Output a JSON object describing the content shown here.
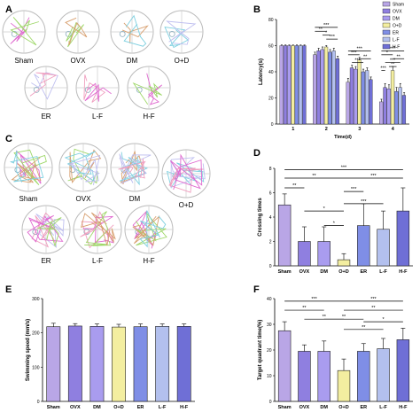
{
  "panels": {
    "A": {
      "letter": "A",
      "labels": [
        "Sham",
        "OVX",
        "DM",
        "O+D",
        "ER",
        "L-F",
        "H-F"
      ]
    },
    "C": {
      "letter": "C",
      "labels": [
        "Sham",
        "OVX",
        "DM",
        "O+D",
        "ER",
        "L-F",
        "H-F"
      ]
    },
    "B": {
      "letter": "B"
    },
    "D": {
      "letter": "D"
    },
    "E": {
      "letter": "E"
    },
    "F": {
      "letter": "F"
    }
  },
  "colors": {
    "Sham": "#b9a6e6",
    "OVX": "#8f7fe0",
    "DM": "#a99cef",
    "O+D": "#f3eea0",
    "ER": "#7f8ee6",
    "L-F": "#b3c0ee",
    "H-F": "#6f6fd6"
  },
  "chart_data": [
    {
      "panel": "B",
      "type": "bar",
      "xlabel": "Time(d)",
      "ylabel": "Latency(s)",
      "ylim": [
        0,
        80
      ],
      "yticks": [
        0,
        20,
        40,
        60,
        80
      ],
      "categories": [
        "1",
        "2",
        "3",
        "4"
      ],
      "legend": "top-right",
      "significance_labels": [
        "***",
        "**",
        "*",
        "***",
        "***",
        "***",
        "**",
        "***",
        "***",
        "*",
        "**",
        "***",
        "**",
        "***"
      ],
      "series": [
        {
          "name": "Sham",
          "values": [
            60,
            53,
            32,
            17
          ],
          "errors": [
            0.5,
            2,
            3,
            2
          ]
        },
        {
          "name": "OVX",
          "values": [
            60,
            56,
            43,
            28
          ],
          "errors": [
            0.5,
            2,
            2,
            3
          ]
        },
        {
          "name": "DM",
          "values": [
            60,
            57,
            42,
            27
          ],
          "errors": [
            0.5,
            2,
            2,
            3
          ]
        },
        {
          "name": "O+D",
          "values": [
            60,
            59,
            49,
            41
          ],
          "errors": [
            0.5,
            1,
            2,
            3
          ]
        },
        {
          "name": "ER",
          "values": [
            60,
            55,
            40,
            25
          ],
          "errors": [
            0.5,
            2,
            2,
            3
          ]
        },
        {
          "name": "L-F",
          "values": [
            60,
            56,
            41,
            28
          ],
          "errors": [
            0.5,
            2,
            2,
            3
          ]
        },
        {
          "name": "H-F",
          "values": [
            60,
            50,
            34,
            22
          ],
          "errors": [
            0.5,
            2,
            2,
            2
          ]
        }
      ]
    },
    {
      "panel": "D",
      "type": "bar",
      "ylabel": "Crossing times",
      "ylim": [
        0,
        8
      ],
      "yticks": [
        0,
        2,
        4,
        6,
        8
      ],
      "categories": [
        "Sham",
        "OVX",
        "DM",
        "O+D",
        "ER",
        "L-F",
        "H-F"
      ],
      "values": [
        5.0,
        2.0,
        2.0,
        0.5,
        3.3,
        3.0,
        4.5
      ],
      "errors": [
        0.9,
        1.2,
        1.2,
        0.5,
        1.8,
        1.5,
        1.9
      ],
      "significance_labels": [
        "***",
        "**",
        "**",
        "***",
        "*",
        "*",
        "***",
        "***"
      ]
    },
    {
      "panel": "E",
      "type": "bar",
      "ylabel": "Swimming speed (mm/s)",
      "ylim": [
        0,
        300
      ],
      "yticks": [
        0,
        100,
        200,
        300
      ],
      "categories": [
        "Sham",
        "OVX",
        "DM",
        "O+D",
        "ER",
        "L-F",
        "H-F"
      ],
      "values": [
        218,
        220,
        219,
        217,
        218,
        219,
        219
      ],
      "errors": [
        10,
        7,
        7,
        8,
        8,
        7,
        7
      ]
    },
    {
      "panel": "F",
      "type": "bar",
      "ylabel": "Target quadrant time(%)",
      "ylim": [
        0,
        40
      ],
      "yticks": [
        0,
        10,
        20,
        30,
        40
      ],
      "categories": [
        "Sham",
        "OVX",
        "DM",
        "O+D",
        "ER",
        "L-F",
        "H-F"
      ],
      "values": [
        27.5,
        19.5,
        19.5,
        12.0,
        19.5,
        20.5,
        24.0
      ],
      "errors": [
        3.5,
        2.5,
        4.0,
        4.5,
        3.0,
        4.0,
        4.5
      ],
      "significance_labels": [
        "***",
        "***",
        "**",
        "**",
        "**",
        "**",
        "*",
        "**"
      ]
    }
  ]
}
